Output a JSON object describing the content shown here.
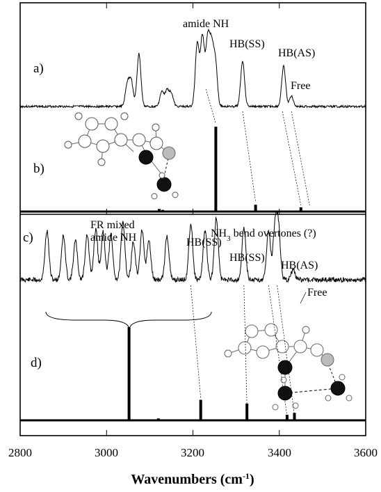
{
  "chart_data": {
    "type": "line",
    "xlabel": "Wavenumbers (cm",
    "xlabel_sup": "-1",
    "xlabel_close": ")",
    "xlim": [
      2800,
      3600
    ],
    "xticks": [
      "2800",
      "3000",
      "3200",
      "3400",
      "3600"
    ],
    "panels": [
      {
        "letter": "a)",
        "kind": "spectrum",
        "peaks": [
          {
            "x": 3048,
            "h": 0.3
          },
          {
            "x": 3057,
            "h": 0.35
          },
          {
            "x": 3075,
            "h": 0.72
          },
          {
            "x": 3128,
            "h": 0.2
          },
          {
            "x": 3140,
            "h": 0.22
          },
          {
            "x": 3150,
            "h": 0.18
          },
          {
            "x": 3210,
            "h": 0.86
          },
          {
            "x": 3222,
            "h": 0.95
          },
          {
            "x": 3234,
            "h": 0.88
          },
          {
            "x": 3243,
            "h": 0.78
          },
          {
            "x": 3252,
            "h": 0.6
          },
          {
            "x": 3315,
            "h": 0.62
          },
          {
            "x": 3410,
            "h": 0.55
          },
          {
            "x": 3428,
            "h": 0.14
          }
        ]
      },
      {
        "letter": "b)",
        "kind": "sticks",
        "sticks": [
          {
            "x": 3253,
            "h": 1.0
          },
          {
            "x": 3345,
            "h": 0.08
          },
          {
            "x": 3450,
            "h": 0.05
          },
          {
            "x": 3122,
            "h": 0.03
          },
          {
            "x": 3130,
            "h": 0.02
          }
        ]
      },
      {
        "letter": "c)",
        "kind": "spectrum",
        "peaks": [
          {
            "x": 2862,
            "h": 0.78
          },
          {
            "x": 2900,
            "h": 0.7
          },
          {
            "x": 2928,
            "h": 0.62
          },
          {
            "x": 2955,
            "h": 0.72
          },
          {
            "x": 2975,
            "h": 0.8
          },
          {
            "x": 2992,
            "h": 0.76
          },
          {
            "x": 3010,
            "h": 0.7
          },
          {
            "x": 3038,
            "h": 0.92
          },
          {
            "x": 3062,
            "h": 0.6
          },
          {
            "x": 3082,
            "h": 0.78
          },
          {
            "x": 3098,
            "h": 0.62
          },
          {
            "x": 3140,
            "h": 0.7
          },
          {
            "x": 3195,
            "h": 0.9
          },
          {
            "x": 3228,
            "h": 0.78
          },
          {
            "x": 3254,
            "h": 0.98
          },
          {
            "x": 3318,
            "h": 0.82
          },
          {
            "x": 3375,
            "h": 0.78
          },
          {
            "x": 3390,
            "h": 0.82
          },
          {
            "x": 3398,
            "h": 0.8
          },
          {
            "x": 3432,
            "h": 0.15
          }
        ]
      },
      {
        "letter": "d)",
        "kind": "sticks",
        "sticks": [
          {
            "x": 3052,
            "h": 1.0
          },
          {
            "x": 3218,
            "h": 0.22
          },
          {
            "x": 3325,
            "h": 0.18
          },
          {
            "x": 3418,
            "h": 0.06
          },
          {
            "x": 3435,
            "h": 0.08
          },
          {
            "x": 3120,
            "h": 0.02
          }
        ]
      }
    ],
    "annotations": [
      {
        "text": "amide NH",
        "panel": "a"
      },
      {
        "text": "HB(SS)",
        "panel": "a"
      },
      {
        "text": "HB(AS)",
        "panel": "a"
      },
      {
        "text": "Free",
        "panel": "a"
      },
      {
        "text": "FR mixed",
        "panel": "c"
      },
      {
        "text": "amide NH",
        "panel": "c"
      },
      {
        "text": "HB(SS)",
        "panel": "c"
      },
      {
        "text": "NH",
        "sub": "3",
        "rest": " bend overtones (?)",
        "panel": "c"
      },
      {
        "text": "HB(SS)",
        "panel": "c"
      },
      {
        "text": "HB(AS)",
        "panel": "c"
      },
      {
        "text": "Free",
        "panel": "c"
      }
    ]
  }
}
